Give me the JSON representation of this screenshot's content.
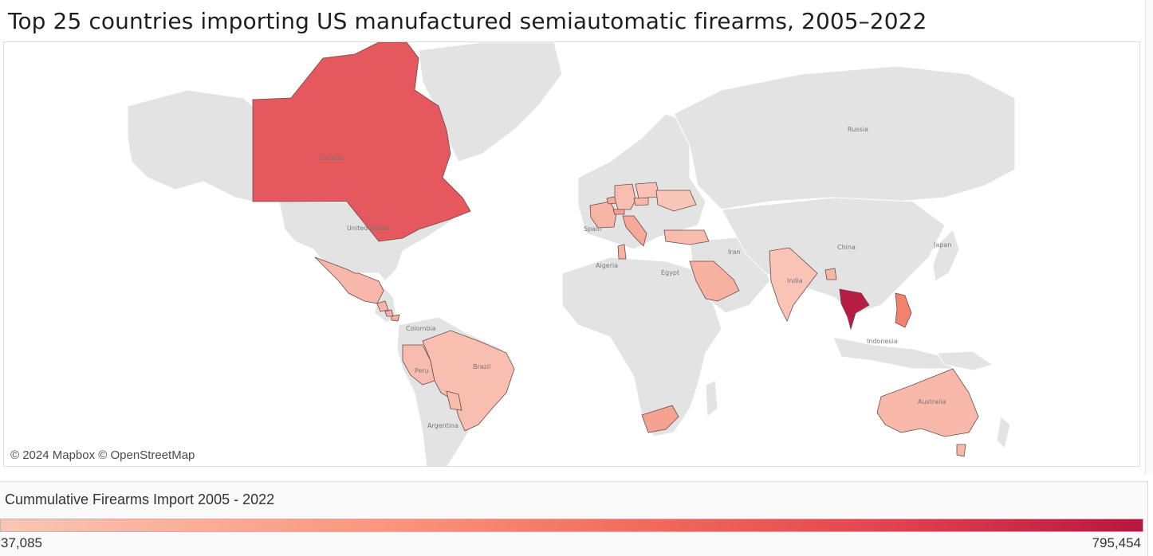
{
  "title": "Top 25 countries importing US manufactured semiautomatic firearms, 2005–2022",
  "map": {
    "attribution": "© 2024 Mapbox © OpenStreetMap",
    "land_color": "#e3e3e3",
    "border_color": "#ffffff",
    "labels": [
      {
        "name": "Canada",
        "text": "Canada"
      },
      {
        "name": "United-States",
        "text": "United States"
      },
      {
        "name": "Russia",
        "text": "Russia"
      },
      {
        "name": "China",
        "text": "China"
      },
      {
        "name": "Japan",
        "text": "Japan"
      },
      {
        "name": "Iran",
        "text": "Iran"
      },
      {
        "name": "India",
        "text": "India"
      },
      {
        "name": "Algeria",
        "text": "Algeria"
      },
      {
        "name": "Egypt",
        "text": "Egypt"
      },
      {
        "name": "Spain",
        "text": "Spain"
      },
      {
        "name": "Colombia",
        "text": "Colombia"
      },
      {
        "name": "Peru",
        "text": "Peru"
      },
      {
        "name": "Brazil",
        "text": "Brazil"
      },
      {
        "name": "Argentina",
        "text": "Argentina"
      },
      {
        "name": "Indonesia",
        "text": "Indonesia"
      },
      {
        "name": "Australia",
        "text": "Australia"
      }
    ],
    "highlighted": [
      {
        "name": "Canada",
        "color": "#e5585e"
      },
      {
        "name": "Thailand",
        "color": "#b71c45"
      },
      {
        "name": "Mexico",
        "color": "#f7b8ab"
      },
      {
        "name": "Brazil",
        "color": "#f8bfb0"
      },
      {
        "name": "Peru",
        "color": "#f8bcae"
      },
      {
        "name": "Australia",
        "color": "#f8b9aa"
      },
      {
        "name": "India",
        "color": "#f9c4b5"
      },
      {
        "name": "Saudi Arabia",
        "color": "#f7b1a0"
      },
      {
        "name": "Philippines",
        "color": "#f2826c"
      },
      {
        "name": "South Africa",
        "color": "#f5a390"
      },
      {
        "name": "Turkey",
        "color": "#f8bbac"
      },
      {
        "name": "Italy",
        "color": "#f6a996"
      },
      {
        "name": "France",
        "color": "#f7b5a5"
      },
      {
        "name": "Germany",
        "color": "#f8bfb1"
      },
      {
        "name": "Poland",
        "color": "#f9c2b4"
      },
      {
        "name": "Ukraine",
        "color": "#f9c5b7"
      },
      {
        "name": "Switzerland",
        "color": "#f5a18d"
      },
      {
        "name": "Czech Republic",
        "color": "#f8b7a7"
      },
      {
        "name": "Tunisia",
        "color": "#f8b2a2"
      },
      {
        "name": "Belgium",
        "color": "#f7ad9c"
      },
      {
        "name": "Guatemala",
        "color": "#f8b8a9"
      },
      {
        "name": "Costa Rica",
        "color": "#f7b4a4"
      },
      {
        "name": "Panama",
        "color": "#f6ad9c"
      },
      {
        "name": "Bangladesh",
        "color": "#f7b6a6"
      },
      {
        "name": "Paraguay",
        "color": "#f8bcad"
      }
    ]
  },
  "legend": {
    "title": "Cummulative Firearms Import 2005 - 2022",
    "min_label": "37,085",
    "max_label": "795,454",
    "min_value": 37085,
    "max_value": 795454,
    "color_low": "#fbc5b5",
    "color_high": "#b8163f"
  }
}
